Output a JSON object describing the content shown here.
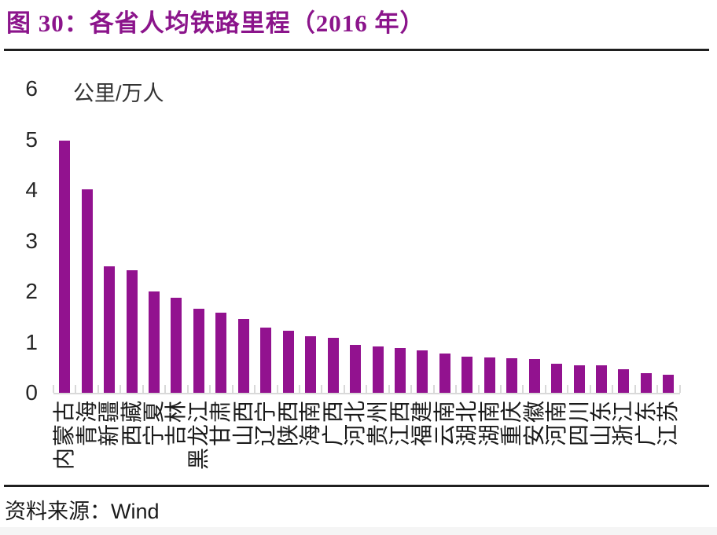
{
  "header": {
    "title": "图 30：各省人均铁路里程（2016 年）"
  },
  "footer": {
    "source_label": "资料来源：",
    "source_name": "Wind"
  },
  "colors": {
    "accent": "#8B148B",
    "bar": "#92128F",
    "axis": "#D9D9D9",
    "rule": "#1F1F1F",
    "text": "#262626",
    "bottom_strip": "#F5F5F5"
  },
  "chart_data": {
    "type": "bar",
    "title": "各省人均铁路里程（2016 年）",
    "unit_label": "公里/万人",
    "xlabel": "",
    "ylabel": "公里/万人",
    "categories": [
      "内蒙古",
      "青海",
      "新疆",
      "西藏",
      "宁夏",
      "吉林",
      "黑龙江",
      "甘肃",
      "山西",
      "辽宁",
      "陕西",
      "海南",
      "广西",
      "河北",
      "贵州",
      "江西",
      "福建",
      "云南",
      "湖北",
      "湖南",
      "重庆",
      "安徽",
      "河南",
      "四川",
      "山东",
      "浙江",
      "广东",
      "江苏"
    ],
    "values": [
      4.98,
      4.02,
      2.49,
      2.42,
      2.0,
      1.88,
      1.66,
      1.58,
      1.46,
      1.28,
      1.23,
      1.12,
      1.09,
      0.94,
      0.92,
      0.88,
      0.83,
      0.78,
      0.71,
      0.69,
      0.68,
      0.67,
      0.58,
      0.55,
      0.54,
      0.46,
      0.38,
      0.35
    ],
    "ylim": [
      0,
      6
    ],
    "yticks": [
      0,
      1,
      2,
      3,
      4,
      5,
      6
    ],
    "grid": false,
    "legend_position": "none",
    "x_label_rotation_deg": -90
  }
}
